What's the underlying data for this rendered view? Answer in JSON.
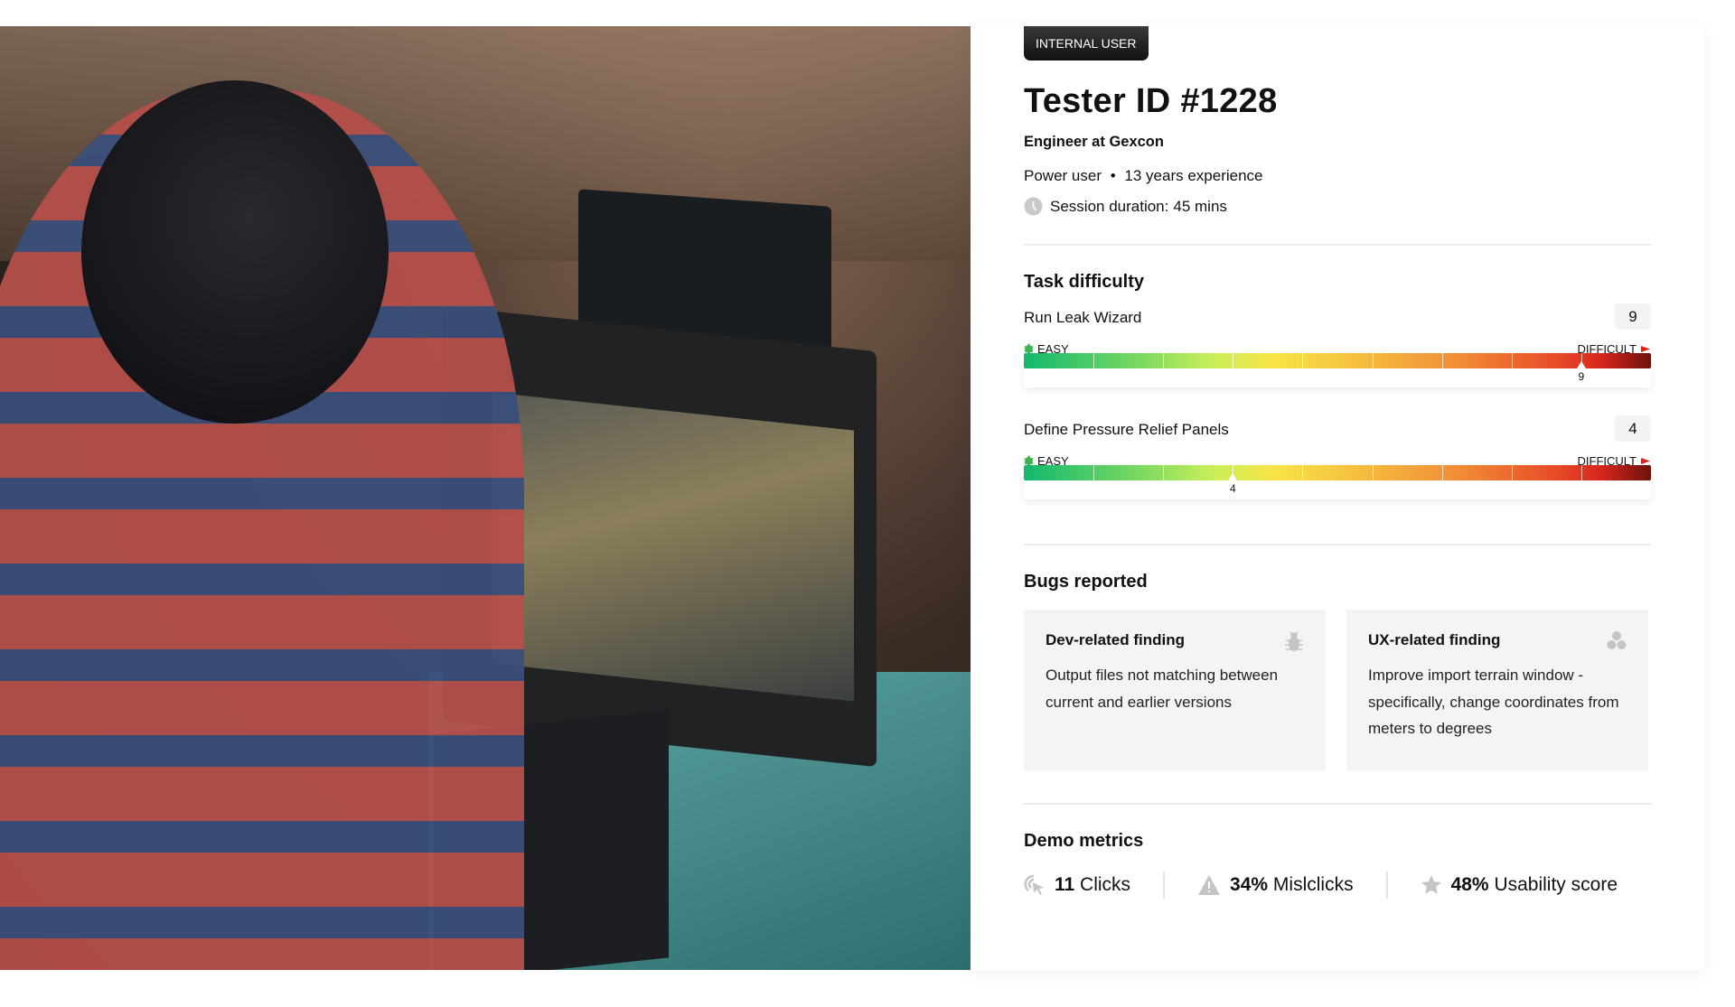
{
  "profile": {
    "badge": "INTERNAL USER",
    "title": "Tester ID #1228",
    "role": "Engineer at Gexcon",
    "user_type": "Power user",
    "experience": "13 years experience",
    "session_label": "Session duration:",
    "session_value": "45 mins"
  },
  "task_difficulty": {
    "heading": "Task difficulty",
    "easy_label": "EASY",
    "difficult_label": "DIFFICULT",
    "scale_min": 1,
    "scale_max": 10,
    "colors": {
      "easy": "#12b870",
      "mid": "#f8e446",
      "hard": "#6e120c"
    },
    "tasks": [
      {
        "name": "Run Leak Wizard",
        "value": "9"
      },
      {
        "name": "Define Pressure Relief Panels",
        "value": "4"
      }
    ]
  },
  "bugs": {
    "heading": "Bugs reported",
    "cards": [
      {
        "title": "Dev-related finding",
        "text": "Output files not matching between current and earlier versions",
        "icon": "bug-icon"
      },
      {
        "title": "UX-related finding",
        "text": "Improve import terrain window - specifically, change coordinates from meters to degrees",
        "icon": "circles-icon"
      }
    ]
  },
  "metrics": {
    "heading": "Demo metrics",
    "items": [
      {
        "value": "11",
        "label": "Clicks",
        "icon": "click-icon"
      },
      {
        "value": "34%",
        "label": "Mislclicks",
        "icon": "warning-icon"
      },
      {
        "value": "48%",
        "label": "Usability score",
        "icon": "star-icon"
      }
    ]
  }
}
